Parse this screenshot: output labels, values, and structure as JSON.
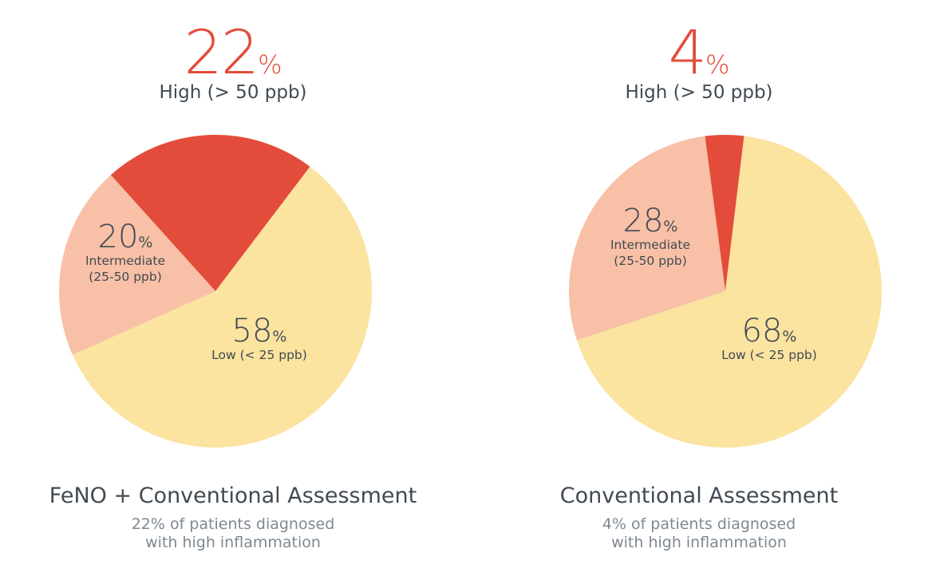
{
  "chart_data": [
    {
      "type": "pie",
      "headline": {
        "value": "22",
        "unit": "%",
        "label": "High (> 50 ppb)"
      },
      "title": "FeNO + Conventional Assessment",
      "subtitle": [
        "22% of patients diagnosed",
        "with high inflammation"
      ],
      "slices": [
        {
          "category": "High",
          "value": 22,
          "color": "#e34c3a"
        },
        {
          "category": "Low",
          "value": 58,
          "value_text": "58",
          "unit": "%",
          "label": [
            "Low (< 25 ppb)"
          ],
          "color": "#fbe3a0"
        },
        {
          "category": "Intermediate",
          "value": 20,
          "value_text": "20",
          "unit": "%",
          "label": [
            "Intermediate",
            "(25-50 ppb)"
          ],
          "color": "#f8c0a6"
        }
      ]
    },
    {
      "type": "pie",
      "headline": {
        "value": "4",
        "unit": "%",
        "label": "High (> 50 ppb)"
      },
      "title": "Conventional Assessment",
      "subtitle": [
        "4% of patients diagnosed",
        "with high inflammation"
      ],
      "slices": [
        {
          "category": "High",
          "value": 4,
          "color": "#e34c3a"
        },
        {
          "category": "Low",
          "value": 68,
          "value_text": "68",
          "unit": "%",
          "label": [
            "Low (< 25 ppb)"
          ],
          "color": "#fbe3a0"
        },
        {
          "category": "Intermediate",
          "value": 28,
          "value_text": "28",
          "unit": "%",
          "label": [
            "Intermediate",
            "(25-50 ppb)"
          ],
          "color": "#f8c0a6"
        }
      ]
    }
  ]
}
